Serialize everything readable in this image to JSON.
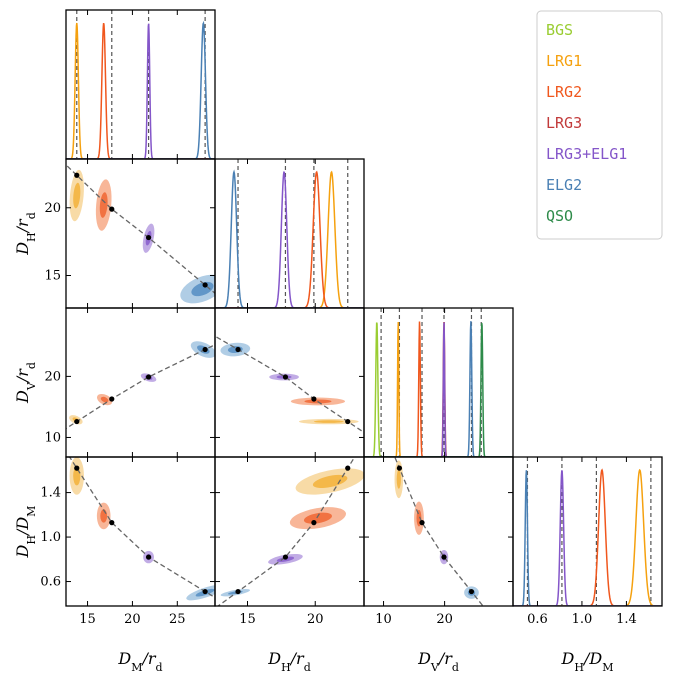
{
  "chart_data": {
    "type": "corner",
    "title": "",
    "variables": [
      {
        "name": "DM_over_rd",
        "label_main": "D",
        "label_sub": "M",
        "label_tail": "/r",
        "label_tail_sub": "d",
        "range": [
          12.6,
          29.2
        ],
        "ticks": [
          15,
          20,
          25
        ],
        "tick_labels": [
          "15",
          "20",
          "25"
        ]
      },
      {
        "name": "DH_over_rd",
        "label_main": "D",
        "label_sub": "H",
        "label_tail": "/r",
        "label_tail_sub": "d",
        "range": [
          12.6,
          23.6
        ],
        "ticks": [
          15,
          20
        ],
        "tick_labels": [
          "15",
          "20"
        ]
      },
      {
        "name": "DV_over_rd",
        "label_main": "D",
        "label_sub": "V",
        "label_tail": "/r",
        "label_tail_sub": "d",
        "range": [
          6.8,
          31.2
        ],
        "ticks": [
          10,
          20
        ],
        "tick_labels": [
          "10",
          "20"
        ]
      },
      {
        "name": "DH_over_DM",
        "label_main": "D",
        "label_sub": "H",
        "label_tail": "/D",
        "label_tail_sub": "M",
        "range": [
          0.38,
          1.72
        ],
        "ticks": [
          0.6,
          1.0,
          1.4
        ],
        "tick_labels": [
          "0.6",
          "1.0",
          "1.4"
        ]
      }
    ],
    "grid": false,
    "legend_position": "top-right",
    "series": [
      {
        "name": "BGS",
        "color": "#9acd32",
        "fills": [
          "#c2e08a",
          "#a8d55a"
        ],
        "vars": {
          "DV_over_rd": {
            "mean": 8.9,
            "sigma": 0.17
          }
        }
      },
      {
        "name": "LRG1",
        "color": "#f5a10f",
        "fills": [
          "#f7d596",
          "#f3b440"
        ],
        "vars": {
          "DM_over_rd": {
            "mean": 13.8,
            "sigma": 0.18
          },
          "DH_over_rd": {
            "mean": 21.2,
            "sigma": 0.25
          },
          "DV_over_rd": {
            "mean": 12.4,
            "sigma": 0.1
          },
          "DH_over_DM": {
            "mean": 1.52,
            "sigma": 0.035
          }
        }
      },
      {
        "name": "LRG2",
        "color": "#f0571d",
        "fills": [
          "#f7a986",
          "#ef6a38"
        ],
        "vars": {
          "DM_over_rd": {
            "mean": 16.8,
            "sigma": 0.2
          },
          "DH_over_rd": {
            "mean": 20.1,
            "sigma": 0.25
          },
          "DV_over_rd": {
            "mean": 15.9,
            "sigma": 0.13
          },
          "DH_over_DM": {
            "mean": 1.18,
            "sigma": 0.03
          }
        }
      },
      {
        "name": "LRG3",
        "color": "#c23b3b",
        "fills": [
          "#e58a8a",
          "#c94a4a"
        ],
        "vars": {
          "DV_over_rd": {
            "mean": 19.9,
            "sigma": 0.12
          }
        }
      },
      {
        "name": "LRG3+ELG1",
        "color": "#8456c9",
        "fills": [
          "#b69ee0",
          "#8b62cd"
        ],
        "vars": {
          "DM_over_rd": {
            "mean": 21.8,
            "sigma": 0.13
          },
          "DH_over_rd": {
            "mean": 17.7,
            "sigma": 0.2
          },
          "DV_over_rd": {
            "mean": 19.9,
            "sigma": 0.1
          },
          "DH_over_DM": {
            "mean": 0.82,
            "sigma": 0.015
          }
        }
      },
      {
        "name": "ELG2",
        "color": "#4a80b4",
        "fills": [
          "#a2c4e0",
          "#5a91c4"
        ],
        "vars": {
          "DM_over_rd": {
            "mean": 27.9,
            "sigma": 0.24
          },
          "DH_over_rd": {
            "mean": 14.0,
            "sigma": 0.2
          },
          "DV_over_rd": {
            "mean": 24.3,
            "sigma": 0.15
          },
          "DH_over_DM": {
            "mean": 0.5,
            "sigma": 0.01
          }
        }
      },
      {
        "name": "QSO",
        "color": "#2e8b4a",
        "fills": [
          "#8fcda2",
          "#3f9d5c"
        ],
        "vars": {
          "DV_over_rd": {
            "mean": 26.1,
            "sigma": 0.14
          }
        }
      }
    ],
    "ellipses": [
      {
        "series": "LRG1",
        "pair": [
          "DM_over_rd",
          "DH_over_rd"
        ],
        "center": [
          13.8,
          20.9
        ],
        "sx": 0.38,
        "sy": 0.95,
        "rot": -5
      },
      {
        "series": "LRG2",
        "pair": [
          "DM_over_rd",
          "DH_over_rd"
        ],
        "center": [
          16.8,
          20.2
        ],
        "sx": 0.42,
        "sy": 0.95,
        "rot": -5
      },
      {
        "series": "LRG3+ELG1",
        "pair": [
          "DM_over_rd",
          "DH_over_rd"
        ],
        "center": [
          21.8,
          17.75
        ],
        "sx": 0.28,
        "sy": 0.55,
        "rot": -12
      },
      {
        "series": "ELG2",
        "pair": [
          "DM_over_rd",
          "DH_over_rd"
        ],
        "center": [
          27.8,
          14.0
        ],
        "sx": 1.3,
        "sy": 0.45,
        "rot": 22
      },
      {
        "series": "LRG1",
        "pair": [
          "DM_over_rd",
          "DV_over_rd"
        ],
        "center": [
          13.7,
          12.9
        ],
        "sx": 0.4,
        "sy": 0.32,
        "rot": -25
      },
      {
        "series": "LRG2",
        "pair": [
          "DM_over_rd",
          "DV_over_rd"
        ],
        "center": [
          16.9,
          16.2
        ],
        "sx": 0.45,
        "sy": 0.4,
        "rot": -25
      },
      {
        "series": "LRG3+ELG1",
        "pair": [
          "DM_over_rd",
          "DV_over_rd"
        ],
        "center": [
          21.8,
          19.8
        ],
        "sx": 0.45,
        "sy": 0.3,
        "rot": -18
      },
      {
        "series": "ELG2",
        "pair": [
          "DM_over_rd",
          "DV_over_rd"
        ],
        "center": [
          27.9,
          24.4
        ],
        "sx": 0.75,
        "sy": 0.55,
        "rot": -25
      },
      {
        "series": "LRG1",
        "pair": [
          "DM_over_rd",
          "DH_over_DM"
        ],
        "center": [
          13.8,
          1.55
        ],
        "sx": 0.4,
        "sy": 0.085,
        "rot": 0
      },
      {
        "series": "LRG2",
        "pair": [
          "DM_over_rd",
          "DH_over_DM"
        ],
        "center": [
          16.8,
          1.19
        ],
        "sx": 0.38,
        "sy": 0.06,
        "rot": 0
      },
      {
        "series": "LRG3+ELG1",
        "pair": [
          "DM_over_rd",
          "DH_over_DM"
        ],
        "center": [
          21.8,
          0.82
        ],
        "sx": 0.3,
        "sy": 0.028,
        "rot": 0
      },
      {
        "series": "ELG2",
        "pair": [
          "DM_over_rd",
          "DH_over_DM"
        ],
        "center": [
          28.1,
          0.5
        ],
        "sx": 1.1,
        "sy": 0.022,
        "rot": 18
      },
      {
        "series": "LRG1",
        "pair": [
          "DH_over_rd",
          "DV_over_rd"
        ],
        "center": [
          21.0,
          12.6
        ],
        "sx": 1.1,
        "sy": 0.22,
        "rot": 0
      },
      {
        "series": "LRG2",
        "pair": [
          "DH_over_rd",
          "DV_over_rd"
        ],
        "center": [
          20.2,
          15.9
        ],
        "sx": 1.0,
        "sy": 0.32,
        "rot": 0
      },
      {
        "series": "LRG3+ELG1",
        "pair": [
          "DH_over_rd",
          "DV_over_rd"
        ],
        "center": [
          17.7,
          19.9
        ],
        "sx": 0.55,
        "sy": 0.28,
        "rot": 0
      },
      {
        "series": "ELG2",
        "pair": [
          "DH_over_rd",
          "DV_over_rd"
        ],
        "center": [
          14.1,
          24.4
        ],
        "sx": 0.55,
        "sy": 0.55,
        "rot": 5
      },
      {
        "series": "LRG1",
        "pair": [
          "DH_over_rd",
          "DH_over_DM"
        ],
        "center": [
          21.1,
          1.5
        ],
        "sx": 1.3,
        "sy": 0.05,
        "rot": 12
      },
      {
        "series": "LRG2",
        "pair": [
          "DH_over_rd",
          "DH_over_DM"
        ],
        "center": [
          20.2,
          1.17
        ],
        "sx": 1.05,
        "sy": 0.045,
        "rot": 10
      },
      {
        "series": "LRG3+ELG1",
        "pair": [
          "DH_over_rd",
          "DH_over_DM"
        ],
        "center": [
          17.8,
          0.8
        ],
        "sx": 0.65,
        "sy": 0.02,
        "rot": 10
      },
      {
        "series": "ELG2",
        "pair": [
          "DH_over_rd",
          "DH_over_DM"
        ],
        "center": [
          14.1,
          0.5
        ],
        "sx": 0.55,
        "sy": 0.012,
        "rot": 10
      },
      {
        "series": "LRG1",
        "pair": [
          "DV_over_rd",
          "DH_over_DM"
        ],
        "center": [
          12.5,
          1.52
        ],
        "sx": 0.35,
        "sy": 0.085,
        "rot": 0
      },
      {
        "series": "LRG2",
        "pair": [
          "DV_over_rd",
          "DH_over_DM"
        ],
        "center": [
          15.8,
          1.17
        ],
        "sx": 0.4,
        "sy": 0.075,
        "rot": 0
      },
      {
        "series": "LRG3+ELG1",
        "pair": [
          "DV_over_rd",
          "DH_over_DM"
        ],
        "center": [
          19.9,
          0.82
        ],
        "sx": 0.35,
        "sy": 0.032,
        "rot": 0
      },
      {
        "series": "ELG2",
        "pair": [
          "DV_over_rd",
          "DH_over_DM"
        ],
        "center": [
          24.4,
          0.5
        ],
        "sx": 0.6,
        "sy": 0.028,
        "rot": 0
      }
    ],
    "reference_lines": {
      "DM_over_rd": [
        13.8,
        17.7,
        21.8,
        28.1
      ],
      "DH_over_rd": [
        14.3,
        17.8,
        19.9,
        22.4
      ],
      "DV_over_rd": [
        9.6,
        12.6,
        16.3,
        19.9,
        24.4,
        26.0
      ],
      "DH_over_DM": [
        0.51,
        0.82,
        1.13,
        1.62
      ]
    },
    "reference_points": {
      "DM_over_rd": [
        13.8,
        17.7,
        21.8,
        28.1
      ],
      "DH_over_rd": [
        22.4,
        19.9,
        17.8,
        14.3
      ],
      "DV_over_rd": [
        12.6,
        16.3,
        19.9,
        24.4
      ],
      "DH_over_DM": [
        1.62,
        1.13,
        0.82,
        0.51
      ]
    }
  }
}
